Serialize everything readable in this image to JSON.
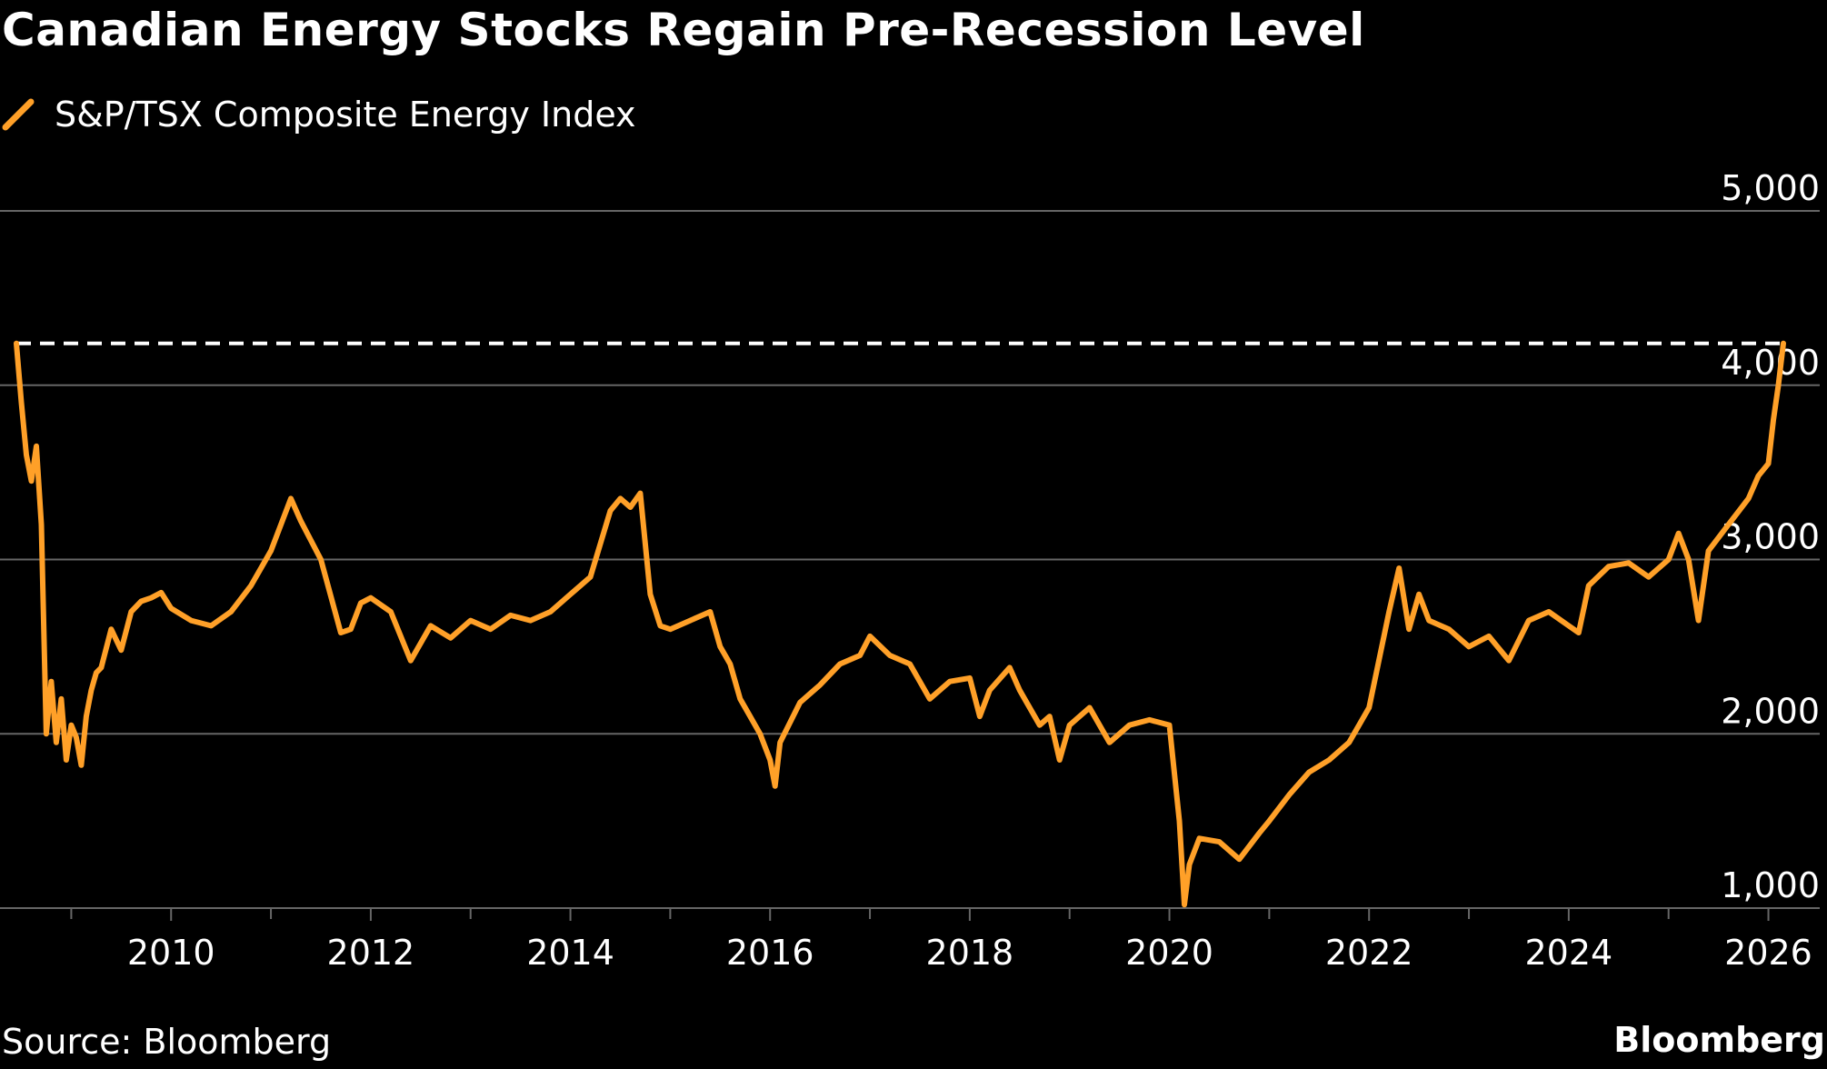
{
  "colors": {
    "background": "#000000",
    "series": "#FFA028",
    "grid": "#666666",
    "text": "#FFFFFF",
    "reference_line": "#FFFFFF"
  },
  "legend": {
    "label": "S&P/TSX Composite Energy Index",
    "icon": "diagonal-line-icon"
  },
  "footer": {
    "source": "Source: Bloomberg",
    "brand": "Bloomberg"
  },
  "chart_data": {
    "type": "line",
    "title": "Canadian Energy Stocks Regain Pre-Recession Level",
    "xlabel": "",
    "ylabel": "",
    "xlim": [
      2008.45,
      2026.15
    ],
    "ylim": [
      1000,
      5000
    ],
    "yticks": [
      1000,
      2000,
      3000,
      4000,
      5000
    ],
    "ytick_labels": [
      "1,000",
      "2,000",
      "3,000",
      "4,000",
      "5,000"
    ],
    "xticks": [
      2010,
      2012,
      2014,
      2016,
      2018,
      2020,
      2022,
      2024,
      2026
    ],
    "xtick_labels": [
      "2010",
      "2012",
      "2014",
      "2016",
      "2018",
      "2020",
      "2022",
      "2024",
      "2026"
    ],
    "x_minor_ticks": [
      2009,
      2011,
      2013,
      2015,
      2017,
      2019,
      2021,
      2023,
      2025
    ],
    "grid": true,
    "reference_line": {
      "value": 4240,
      "style": "dashed"
    },
    "series": [
      {
        "name": "S&P/TSX Composite Energy Index",
        "x": [
          2008.45,
          2008.5,
          2008.55,
          2008.6,
          2008.65,
          2008.7,
          2008.75,
          2008.8,
          2008.85,
          2008.9,
          2008.95,
          2009.0,
          2009.05,
          2009.1,
          2009.15,
          2009.2,
          2009.25,
          2009.3,
          2009.4,
          2009.5,
          2009.6,
          2009.7,
          2009.8,
          2009.9,
          2010.0,
          2010.2,
          2010.4,
          2010.6,
          2010.8,
          2011.0,
          2011.2,
          2011.3,
          2011.5,
          2011.7,
          2011.8,
          2011.9,
          2012.0,
          2012.2,
          2012.4,
          2012.6,
          2012.8,
          2013.0,
          2013.2,
          2013.4,
          2013.6,
          2013.8,
          2014.0,
          2014.2,
          2014.4,
          2014.5,
          2014.6,
          2014.7,
          2014.8,
          2014.9,
          2015.0,
          2015.2,
          2015.4,
          2015.5,
          2015.6,
          2015.7,
          2015.8,
          2015.9,
          2016.0,
          2016.05,
          2016.1,
          2016.3,
          2016.5,
          2016.7,
          2016.9,
          2017.0,
          2017.2,
          2017.4,
          2017.6,
          2017.8,
          2018.0,
          2018.1,
          2018.2,
          2018.4,
          2018.5,
          2018.7,
          2018.8,
          2018.9,
          2019.0,
          2019.2,
          2019.4,
          2019.6,
          2019.8,
          2020.0,
          2020.1,
          2020.15,
          2020.2,
          2020.3,
          2020.5,
          2020.7,
          2020.9,
          2021.0,
          2021.2,
          2021.4,
          2021.6,
          2021.8,
          2022.0,
          2022.2,
          2022.3,
          2022.4,
          2022.5,
          2022.6,
          2022.8,
          2023.0,
          2023.2,
          2023.4,
          2023.6,
          2023.8,
          2024.0,
          2024.1,
          2024.2,
          2024.4,
          2024.6,
          2024.8,
          2025.0,
          2025.1,
          2025.2,
          2025.3,
          2025.4,
          2025.6,
          2025.8,
          2025.9,
          2026.0,
          2026.05,
          2026.1,
          2026.15
        ],
        "values": [
          4240,
          3900,
          3600,
          3450,
          3650,
          3200,
          2000,
          2300,
          1950,
          2200,
          1850,
          2050,
          1980,
          1820,
          2100,
          2250,
          2350,
          2380,
          2600,
          2480,
          2700,
          2760,
          2780,
          2810,
          2720,
          2650,
          2620,
          2700,
          2850,
          3050,
          3350,
          3220,
          3000,
          2580,
          2600,
          2750,
          2780,
          2700,
          2420,
          2620,
          2550,
          2650,
          2600,
          2680,
          2650,
          2700,
          2800,
          2900,
          3280,
          3350,
          3300,
          3380,
          2800,
          2620,
          2600,
          2650,
          2700,
          2500,
          2400,
          2200,
          2100,
          2000,
          1850,
          1700,
          1950,
          2180,
          2280,
          2400,
          2450,
          2560,
          2450,
          2400,
          2200,
          2300,
          2320,
          2100,
          2250,
          2380,
          2250,
          2050,
          2100,
          1850,
          2050,
          2150,
          1950,
          2050,
          2080,
          2050,
          1500,
          1020,
          1250,
          1400,
          1380,
          1280,
          1430,
          1500,
          1650,
          1780,
          1850,
          1950,
          2150,
          2700,
          2950,
          2600,
          2800,
          2650,
          2600,
          2500,
          2560,
          2420,
          2650,
          2700,
          2620,
          2580,
          2850,
          2960,
          2980,
          2900,
          3000,
          3150,
          3000,
          2650,
          3050,
          3200,
          3350,
          3480,
          3550,
          3800,
          4000,
          4240
        ]
      }
    ]
  }
}
